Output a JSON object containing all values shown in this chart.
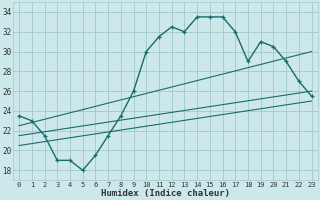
{
  "title": "",
  "xlabel": "Humidex (Indice chaleur)",
  "ylabel": "",
  "bg_color": "#cce8ea",
  "grid_color": "#a0c8cc",
  "line_color": "#1a6b6b",
  "xlim": [
    -0.5,
    23.5
  ],
  "ylim": [
    17,
    35
  ],
  "xticks": [
    0,
    1,
    2,
    3,
    4,
    5,
    6,
    7,
    8,
    9,
    10,
    11,
    12,
    13,
    14,
    15,
    16,
    17,
    18,
    19,
    20,
    21,
    22,
    23
  ],
  "yticks": [
    18,
    20,
    22,
    24,
    26,
    28,
    30,
    32,
    34
  ],
  "main_x": [
    0,
    1,
    2,
    3,
    4,
    5,
    6,
    7,
    8,
    9,
    10,
    11,
    12,
    13,
    14,
    15,
    16,
    17,
    18,
    19,
    20,
    21,
    22,
    23
  ],
  "main_y": [
    23.5,
    23.0,
    21.5,
    19.0,
    19.0,
    18.0,
    19.5,
    21.5,
    23.5,
    26.0,
    30.0,
    31.5,
    32.5,
    32.0,
    33.5,
    33.5,
    33.5,
    32.0,
    29.0,
    31.0,
    30.5,
    29.0,
    27.0,
    25.5
  ],
  "line2_x": [
    0,
    23
  ],
  "line2_y": [
    22.5,
    30.0
  ],
  "line3_x": [
    0,
    23
  ],
  "line3_y": [
    21.5,
    26.0
  ],
  "line4_x": [
    0,
    23
  ],
  "line4_y": [
    20.5,
    25.0
  ]
}
